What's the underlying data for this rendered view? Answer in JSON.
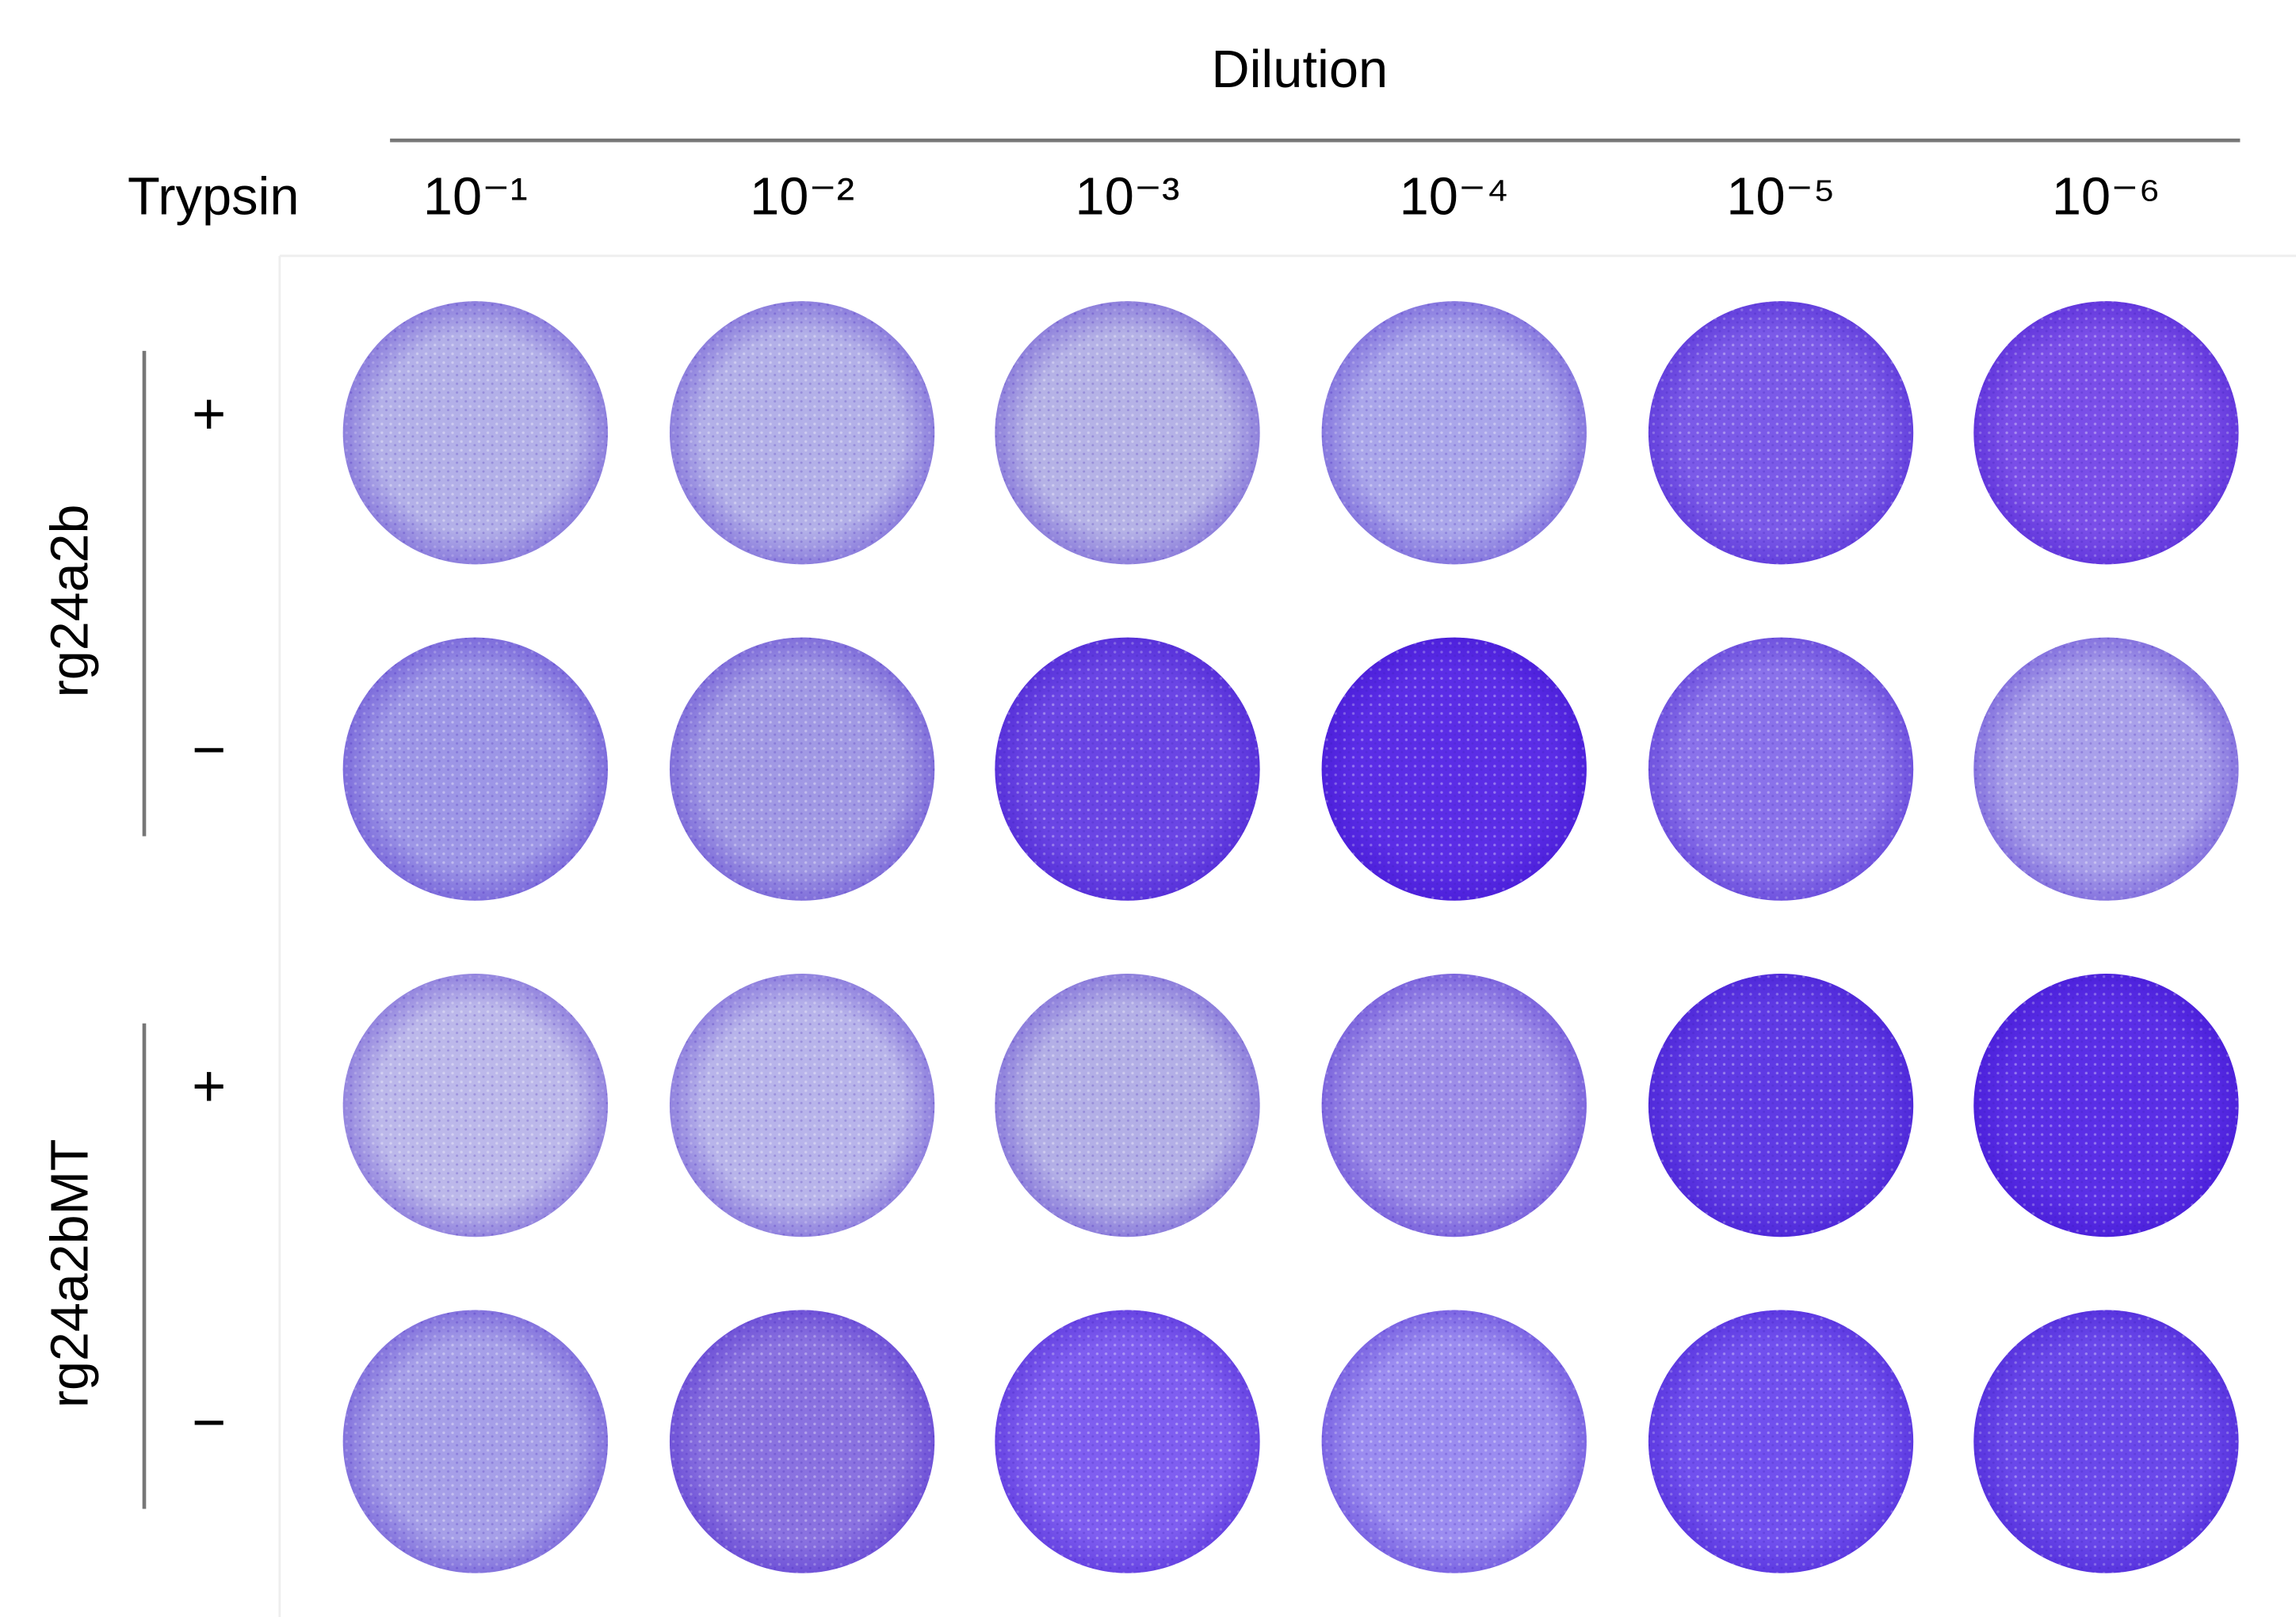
{
  "header": {
    "title": "Dilution",
    "row_header": "Trypsin",
    "columns": [
      "10⁻¹",
      "10⁻²",
      "10⁻³",
      "10⁻⁴",
      "10⁻⁵",
      "10⁻⁶"
    ]
  },
  "groups": [
    {
      "label": "rg24a2b",
      "rows": [
        "+",
        "−"
      ]
    },
    {
      "label": "rg24a2bMT",
      "rows": [
        "+",
        "−"
      ]
    }
  ]
}
